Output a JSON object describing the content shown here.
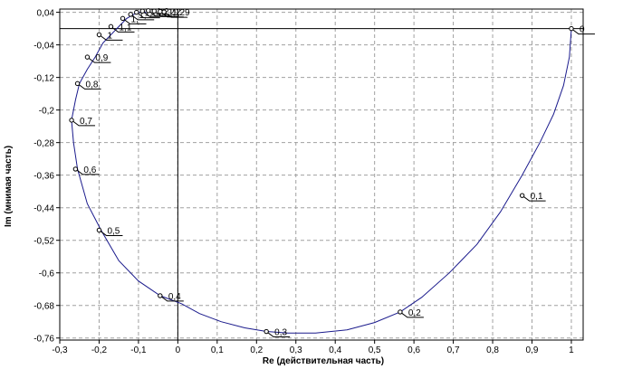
{
  "chart_data": {
    "type": "line",
    "title": "",
    "xlabel": "Re (действительная часть)",
    "ylabel": "Im (мнимая часть)",
    "xlim": [
      -0.3,
      1.03
    ],
    "ylim": [
      -0.765,
      0.048
    ],
    "grid": true,
    "grid_style": "dashed",
    "x_ticks": [
      {
        "value": -0.3,
        "label": "-0,3"
      },
      {
        "value": -0.2,
        "label": "-0,2"
      },
      {
        "value": -0.1,
        "label": "-0,1"
      },
      {
        "value": 0.0,
        "label": "0"
      },
      {
        "value": 0.1,
        "label": "0,1"
      },
      {
        "value": 0.2,
        "label": "0,2"
      },
      {
        "value": 0.3,
        "label": "0,3"
      },
      {
        "value": 0.4,
        "label": "0,4"
      },
      {
        "value": 0.5,
        "label": "0,5"
      },
      {
        "value": 0.6,
        "label": "0,6"
      },
      {
        "value": 0.7,
        "label": "0,7"
      },
      {
        "value": 0.8,
        "label": "0,8"
      },
      {
        "value": 0.9,
        "label": "0,9"
      },
      {
        "value": 1.0,
        "label": "1"
      }
    ],
    "y_ticks": [
      {
        "value": 0.04,
        "label": "0,04"
      },
      {
        "value": -0.04,
        "label": "-0,04"
      },
      {
        "value": -0.12,
        "label": "-0,12"
      },
      {
        "value": -0.2,
        "label": "-0,2"
      },
      {
        "value": -0.28,
        "label": "-0,28"
      },
      {
        "value": -0.36,
        "label": "-0,36"
      },
      {
        "value": -0.44,
        "label": "-0,44"
      },
      {
        "value": -0.52,
        "label": "-0,52"
      },
      {
        "value": -0.6,
        "label": "-0,6"
      },
      {
        "value": -0.68,
        "label": "-0,68"
      },
      {
        "value": -0.76,
        "label": "-0,76"
      }
    ],
    "curve": [
      [
        1.0,
        0.0
      ],
      [
        0.995,
        -0.07
      ],
      [
        0.98,
        -0.14
      ],
      [
        0.955,
        -0.21
      ],
      [
        0.92,
        -0.28
      ],
      [
        0.875,
        -0.36
      ],
      [
        0.82,
        -0.45
      ],
      [
        0.76,
        -0.53
      ],
      [
        0.69,
        -0.6
      ],
      [
        0.62,
        -0.66
      ],
      [
        0.565,
        -0.696
      ],
      [
        0.5,
        -0.722
      ],
      [
        0.43,
        -0.74
      ],
      [
        0.35,
        -0.748
      ],
      [
        0.28,
        -0.748
      ],
      [
        0.225,
        -0.744
      ],
      [
        0.17,
        -0.735
      ],
      [
        0.11,
        -0.72
      ],
      [
        0.055,
        -0.7
      ],
      [
        0.01,
        -0.676
      ],
      [
        -0.045,
        -0.656
      ],
      [
        -0.1,
        -0.62
      ],
      [
        -0.15,
        -0.57
      ],
      [
        -0.195,
        -0.495
      ],
      [
        -0.23,
        -0.43
      ],
      [
        -0.255,
        -0.345
      ],
      [
        -0.265,
        -0.28
      ],
      [
        -0.27,
        -0.225
      ],
      [
        -0.26,
        -0.175
      ],
      [
        -0.25,
        -0.135
      ],
      [
        -0.23,
        -0.1
      ],
      [
        -0.21,
        -0.07
      ],
      [
        -0.19,
        -0.035
      ],
      [
        -0.17,
        -0.015
      ],
      [
        -0.15,
        0.005
      ],
      [
        -0.13,
        0.025
      ],
      [
        -0.11,
        0.036
      ],
      [
        -0.09,
        0.042
      ],
      [
        -0.08,
        0.039
      ]
    ],
    "labeled_points": [
      {
        "x": 1.0,
        "y": 0.0,
        "label": "0"
      },
      {
        "x": 0.875,
        "y": -0.41,
        "label": "0,1"
      },
      {
        "x": 0.565,
        "y": -0.696,
        "label": "0,2"
      },
      {
        "x": 0.225,
        "y": -0.744,
        "label": "0,3"
      },
      {
        "x": -0.045,
        "y": -0.656,
        "label": "0,4"
      },
      {
        "x": -0.2,
        "y": -0.495,
        "label": "0,5"
      },
      {
        "x": -0.26,
        "y": -0.345,
        "label": "0,6"
      },
      {
        "x": -0.27,
        "y": -0.225,
        "label": "0,7"
      },
      {
        "x": -0.255,
        "y": -0.135,
        "label": "0,8"
      },
      {
        "x": -0.23,
        "y": -0.07,
        "label": "0,9"
      },
      {
        "x": -0.2,
        "y": -0.015,
        "label": "1"
      },
      {
        "x": -0.17,
        "y": 0.005,
        "label": "1,1"
      },
      {
        "x": -0.14,
        "y": 0.025,
        "label": "1,"
      },
      {
        "x": -0.12,
        "y": 0.035,
        "label": "1,"
      },
      {
        "x": -0.105,
        "y": 0.04,
        "label": "1,"
      },
      {
        "x": -0.09,
        "y": 0.043,
        "label": "1,2"
      },
      {
        "x": -0.075,
        "y": 0.044,
        "label": "1,2"
      },
      {
        "x": -0.06,
        "y": 0.043,
        "label": "1,2"
      },
      {
        "x": -0.045,
        "y": 0.042,
        "label": "1,2"
      },
      {
        "x": -0.035,
        "y": 0.041,
        "label": "1,29"
      }
    ],
    "colors": {
      "curve": "#1a1a8c",
      "axes": "#000000",
      "grid": "#a0a0a0",
      "marker_fill": "#ffffff",
      "marker_stroke": "#000000"
    }
  }
}
